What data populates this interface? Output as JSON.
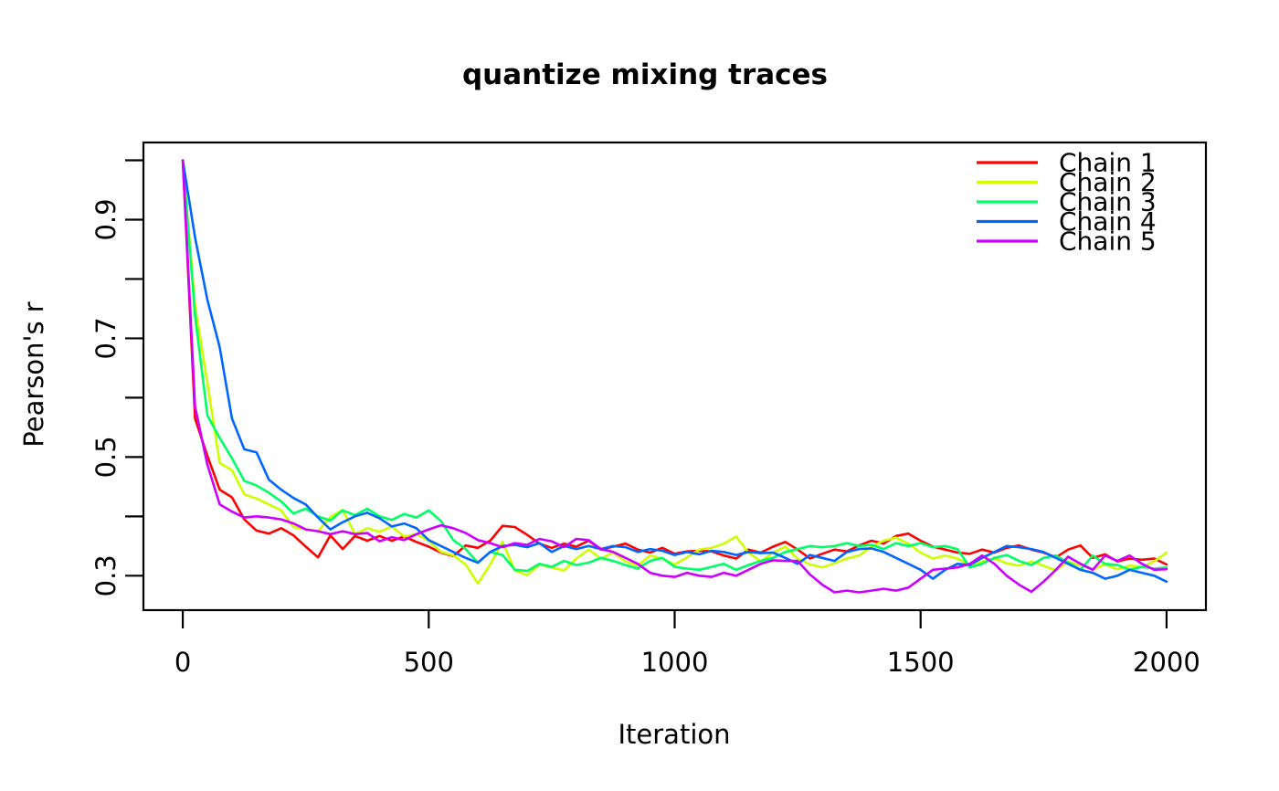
{
  "figure": {
    "title": "quantize mixing traces",
    "xlabel": "Iteration",
    "ylabel": "Pearson's r"
  },
  "colors": {
    "background": "#FFFFFF",
    "axis": "#000000",
    "text": "#000000"
  },
  "chart_data": {
    "type": "line",
    "title": "quantize mixing traces",
    "xlabel": "Iteration",
    "ylabel": "Pearson's r",
    "grid": false,
    "legend_position": "top-right",
    "legend_entries": [
      "Chain 1",
      "Chain 2",
      "Chain 3",
      "Chain 4",
      "Chain 5"
    ],
    "x_ticks": [
      0,
      500,
      1000,
      1500,
      2000
    ],
    "x_tick_labels": [
      "0",
      "500",
      "1000",
      "1500",
      "2000"
    ],
    "y_ticks": [
      0.3,
      0.4,
      0.5,
      0.6,
      0.7,
      0.8,
      0.9,
      1.0
    ],
    "y_tick_labels": [
      "0.3",
      "",
      "0.5",
      "",
      "0.7",
      "",
      "0.9",
      ""
    ],
    "xlim": [
      -80,
      2080
    ],
    "ylim": [
      0.242,
      1.03
    ],
    "x_data_range": [
      0,
      2000
    ],
    "x_step": 25,
    "x": [
      0,
      25,
      50,
      75,
      100,
      125,
      150,
      175,
      200,
      225,
      250,
      275,
      300,
      325,
      350,
      375,
      400,
      425,
      450,
      475,
      500,
      525,
      550,
      575,
      600,
      625,
      650,
      675,
      700,
      725,
      750,
      775,
      800,
      825,
      850,
      875,
      900,
      925,
      950,
      975,
      1000,
      1025,
      1050,
      1075,
      1100,
      1125,
      1150,
      1175,
      1200,
      1225,
      1250,
      1275,
      1300,
      1325,
      1350,
      1375,
      1400,
      1425,
      1450,
      1475,
      1500,
      1525,
      1550,
      1575,
      1600,
      1625,
      1650,
      1675,
      1700,
      1725,
      1750,
      1775,
      1800,
      1825,
      1850,
      1875,
      1900,
      1925,
      1950,
      1975,
      2000
    ],
    "series": [
      {
        "name": "Chain 1",
        "color": "#FF0000",
        "values": [
          1.0,
          0.565,
          0.502,
          0.445,
          0.432,
          0.395,
          0.376,
          0.371,
          0.38,
          0.368,
          0.349,
          0.331,
          0.368,
          0.345,
          0.367,
          0.359,
          0.367,
          0.359,
          0.366,
          0.357,
          0.349,
          0.339,
          0.333,
          0.351,
          0.347,
          0.359,
          0.384,
          0.382,
          0.369,
          0.354,
          0.347,
          0.354,
          0.349,
          0.359,
          0.344,
          0.349,
          0.354,
          0.344,
          0.339,
          0.347,
          0.337,
          0.341,
          0.342,
          0.341,
          0.334,
          0.329,
          0.344,
          0.339,
          0.349,
          0.357,
          0.344,
          0.329,
          0.337,
          0.344,
          0.341,
          0.351,
          0.359,
          0.354,
          0.367,
          0.371,
          0.359,
          0.349,
          0.344,
          0.339,
          0.337,
          0.344,
          0.339,
          0.347,
          0.351,
          0.344,
          0.339,
          0.331,
          0.344,
          0.351,
          0.33,
          0.336,
          0.324,
          0.329,
          0.327,
          0.329,
          0.319
        ]
      },
      {
        "name": "Chain 2",
        "color": "#CCFF00",
        "values": [
          1.0,
          0.755,
          0.625,
          0.49,
          0.478,
          0.437,
          0.43,
          0.42,
          0.41,
          0.382,
          0.378,
          0.375,
          0.399,
          0.411,
          0.37,
          0.38,
          0.374,
          0.383,
          0.366,
          0.37,
          0.359,
          0.34,
          0.334,
          0.319,
          0.287,
          0.319,
          0.357,
          0.309,
          0.301,
          0.319,
          0.314,
          0.309,
          0.329,
          0.344,
          0.329,
          0.339,
          0.324,
          0.317,
          0.334,
          0.329,
          0.319,
          0.331,
          0.344,
          0.347,
          0.354,
          0.366,
          0.339,
          0.324,
          0.339,
          0.349,
          0.329,
          0.319,
          0.314,
          0.321,
          0.329,
          0.334,
          0.349,
          0.359,
          0.364,
          0.354,
          0.339,
          0.329,
          0.334,
          0.329,
          0.317,
          0.324,
          0.329,
          0.321,
          0.317,
          0.324,
          0.317,
          0.309,
          0.324,
          0.317,
          0.311,
          0.319,
          0.311,
          0.317,
          0.315,
          0.324,
          0.339
        ]
      },
      {
        "name": "Chain 3",
        "color": "#00FF66",
        "values": [
          1.0,
          0.738,
          0.57,
          0.532,
          0.498,
          0.46,
          0.452,
          0.44,
          0.425,
          0.405,
          0.413,
          0.4,
          0.393,
          0.41,
          0.402,
          0.413,
          0.4,
          0.394,
          0.404,
          0.398,
          0.41,
          0.392,
          0.36,
          0.345,
          0.322,
          0.34,
          0.335,
          0.31,
          0.308,
          0.32,
          0.315,
          0.325,
          0.318,
          0.322,
          0.33,
          0.325,
          0.318,
          0.312,
          0.325,
          0.33,
          0.315,
          0.312,
          0.31,
          0.315,
          0.32,
          0.31,
          0.318,
          0.325,
          0.33,
          0.34,
          0.345,
          0.35,
          0.348,
          0.35,
          0.355,
          0.35,
          0.352,
          0.345,
          0.355,
          0.35,
          0.355,
          0.348,
          0.35,
          0.345,
          0.314,
          0.32,
          0.33,
          0.335,
          0.325,
          0.318,
          0.33,
          0.334,
          0.322,
          0.31,
          0.334,
          0.32,
          0.318,
          0.31,
          0.315,
          0.312,
          0.314
        ]
      },
      {
        "name": "Chain 4",
        "color": "#0066FF",
        "values": [
          1.0,
          0.87,
          0.765,
          0.685,
          0.565,
          0.513,
          0.508,
          0.462,
          0.445,
          0.431,
          0.42,
          0.398,
          0.378,
          0.39,
          0.4,
          0.406,
          0.397,
          0.383,
          0.388,
          0.38,
          0.36,
          0.35,
          0.34,
          0.33,
          0.322,
          0.34,
          0.35,
          0.352,
          0.348,
          0.355,
          0.34,
          0.35,
          0.345,
          0.35,
          0.345,
          0.35,
          0.348,
          0.34,
          0.345,
          0.342,
          0.335,
          0.34,
          0.336,
          0.342,
          0.34,
          0.335,
          0.34,
          0.338,
          0.339,
          0.33,
          0.32,
          0.335,
          0.33,
          0.325,
          0.34,
          0.345,
          0.346,
          0.34,
          0.33,
          0.32,
          0.31,
          0.295,
          0.31,
          0.32,
          0.318,
          0.33,
          0.34,
          0.35,
          0.348,
          0.345,
          0.34,
          0.33,
          0.32,
          0.31,
          0.305,
          0.295,
          0.3,
          0.31,
          0.305,
          0.3,
          0.29
        ]
      },
      {
        "name": "Chain 5",
        "color": "#CC00FF",
        "values": [
          1.0,
          0.585,
          0.487,
          0.42,
          0.408,
          0.398,
          0.4,
          0.398,
          0.395,
          0.388,
          0.378,
          0.375,
          0.37,
          0.375,
          0.37,
          0.372,
          0.358,
          0.365,
          0.36,
          0.37,
          0.378,
          0.385,
          0.38,
          0.372,
          0.36,
          0.355,
          0.348,
          0.355,
          0.352,
          0.362,
          0.358,
          0.348,
          0.362,
          0.36,
          0.345,
          0.34,
          0.33,
          0.32,
          0.305,
          0.3,
          0.298,
          0.305,
          0.3,
          0.298,
          0.305,
          0.3,
          0.31,
          0.32,
          0.326,
          0.325,
          0.325,
          0.302,
          0.285,
          0.272,
          0.275,
          0.272,
          0.275,
          0.278,
          0.275,
          0.28,
          0.295,
          0.31,
          0.312,
          0.314,
          0.32,
          0.334,
          0.32,
          0.3,
          0.285,
          0.273,
          0.29,
          0.31,
          0.332,
          0.32,
          0.31,
          0.334,
          0.325,
          0.334,
          0.32,
          0.31,
          0.311
        ]
      }
    ]
  }
}
